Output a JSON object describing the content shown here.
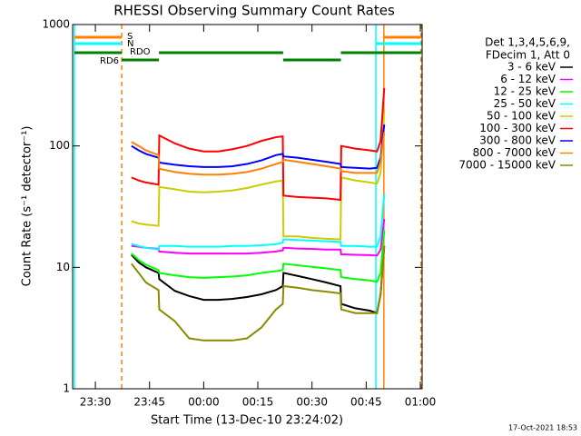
{
  "chart_data": {
    "type": "line",
    "title": "RHESSI Observing Summary Count Rates",
    "x_label": "Start Time (13-Dec-10 23:24:02)",
    "y_label": "Count Rate (s⁻¹ detector⁻¹)",
    "footer": "17-Oct-2021 18:53",
    "legend_title": [
      "Det 1,3,4,5,6,9,",
      "FDecim 1, Att 0"
    ],
    "legend_position": "right",
    "y_log": true,
    "xlim": [
      1403.7,
      1500.5
    ],
    "ylim": [
      1,
      1000
    ],
    "xticks": [
      {
        "value": 1410,
        "label": "23:30"
      },
      {
        "value": 1425,
        "label": "23:45"
      },
      {
        "value": 1440,
        "label": "00:00"
      },
      {
        "value": 1455,
        "label": "00:15"
      },
      {
        "value": 1470,
        "label": "00:30"
      },
      {
        "value": 1485,
        "label": "00:45"
      },
      {
        "value": 1500,
        "label": "01:00"
      }
    ],
    "yticks": [
      1,
      10,
      100,
      1000
    ],
    "x": [
      1420,
      1422,
      1424,
      1427.5,
      1427.7,
      1432,
      1436,
      1440,
      1444,
      1448,
      1452,
      1456,
      1460,
      1461.9,
      1462.1,
      1466,
      1470,
      1474,
      1477.9,
      1478.1,
      1482,
      1486,
      1488,
      1489,
      1490
    ],
    "series": [
      {
        "name": "3 - 6 keV",
        "color": "#000000",
        "values": [
          12.7,
          11,
          10,
          9,
          8,
          6.4,
          5.8,
          5.4,
          5.4,
          5.5,
          5.7,
          6,
          6.5,
          7,
          9,
          8.5,
          8,
          7.5,
          7,
          5,
          4.6,
          4.4,
          4.2,
          6,
          15
        ]
      },
      {
        "name": "6 - 12 keV",
        "color": "#ff00ff",
        "values": [
          15,
          14.8,
          14.5,
          14.2,
          13.5,
          13.2,
          13,
          13,
          13,
          13,
          13,
          13.2,
          13.5,
          13.8,
          14.5,
          14.3,
          14.2,
          14,
          14,
          12.8,
          12.7,
          12.6,
          12.5,
          14,
          25
        ]
      },
      {
        "name": "12 - 25 keV",
        "color": "#00ff00",
        "values": [
          13,
          11.5,
          10.5,
          9.5,
          9,
          8.6,
          8.3,
          8.2,
          8.3,
          8.4,
          8.6,
          9,
          9.3,
          9.5,
          10.7,
          10.4,
          10.1,
          9.8,
          9.5,
          8.3,
          8,
          7.8,
          7.6,
          9,
          20
        ]
      },
      {
        "name": "25 - 50 keV",
        "color": "#00ffff",
        "values": [
          15.6,
          15,
          14.5,
          14,
          15,
          15,
          14.8,
          14.8,
          14.8,
          15,
          15,
          15.2,
          15.5,
          16,
          17,
          16.8,
          16.6,
          16.4,
          16.2,
          15,
          15,
          14.8,
          14.8,
          18,
          40
        ]
      },
      {
        "name": "50 - 100 keV",
        "color": "#cccc00",
        "values": [
          24,
          23,
          22.5,
          22,
          46,
          44,
          42,
          41.5,
          42,
          43,
          45,
          48,
          51,
          52,
          18,
          18,
          17.5,
          17.2,
          17,
          55,
          52,
          50,
          49,
          60,
          200
        ]
      },
      {
        "name": "100 - 300 keV",
        "color": "#ff0000",
        "values": [
          55,
          52,
          50,
          48,
          122,
          105,
          95,
          90,
          90,
          94,
          100,
          110,
          118,
          120,
          39,
          38,
          37.5,
          37,
          36,
          100,
          95,
          92,
          90,
          110,
          300
        ]
      },
      {
        "name": "300 - 800 keV",
        "color": "#0000ff",
        "values": [
          100,
          92,
          86,
          80,
          73,
          70,
          68,
          67,
          67,
          68,
          71,
          76,
          84,
          86,
          82,
          80,
          77,
          74,
          71,
          67,
          66,
          65,
          66,
          80,
          150
        ]
      },
      {
        "name": "800 - 7000 keV",
        "color": "#ff8000",
        "values": [
          108,
          100,
          92,
          84,
          65,
          61,
          59,
          58,
          58,
          59,
          61,
          65,
          71,
          74,
          77,
          74,
          71,
          68,
          65,
          62,
          60,
          60,
          60,
          75,
          130
        ]
      },
      {
        "name": "7000 - 15000 keV",
        "color": "#8b8b00",
        "values": [
          10.7,
          9,
          7.5,
          6.5,
          4.5,
          3.6,
          2.6,
          2.5,
          2.5,
          2.5,
          2.6,
          3.2,
          4.5,
          5,
          7,
          6.8,
          6.5,
          6.3,
          6.1,
          4.5,
          4.2,
          4.2,
          4.2,
          6,
          15
        ]
      }
    ],
    "bars": [
      {
        "label": "S",
        "color": "#ff8000",
        "segments": [
          [
            1404.2,
            1417.3
          ],
          [
            1489.9,
            1500.2
          ]
        ]
      },
      {
        "label": "N",
        "color": "#00ffff",
        "segments": [
          [
            1404.2,
            1417.3
          ],
          [
            1487.7,
            1500.2
          ]
        ]
      },
      {
        "label": "RD6",
        "color": "#008000",
        "segments": [
          [
            1404.2,
            1417.3
          ],
          [
            1427.6,
            1462
          ],
          [
            1478,
            1500.2
          ]
        ]
      },
      {
        "label": "RDO",
        "color": "#008000",
        "segments": [
          [
            1417.3,
            1427.6
          ],
          [
            1462,
            1478
          ]
        ]
      }
    ],
    "vlines": [
      {
        "x": 1404.2,
        "color": "#00ffff",
        "style": "solid"
      },
      {
        "x": 1417.3,
        "color": "#ff8000",
        "style": "dashed"
      },
      {
        "x": 1487.7,
        "color": "#00ffff",
        "style": "solid"
      },
      {
        "x": 1489.9,
        "color": "#ff8000",
        "style": "solid"
      },
      {
        "x": 1500.2,
        "color": "#ff8000",
        "style": "dashed"
      }
    ]
  }
}
